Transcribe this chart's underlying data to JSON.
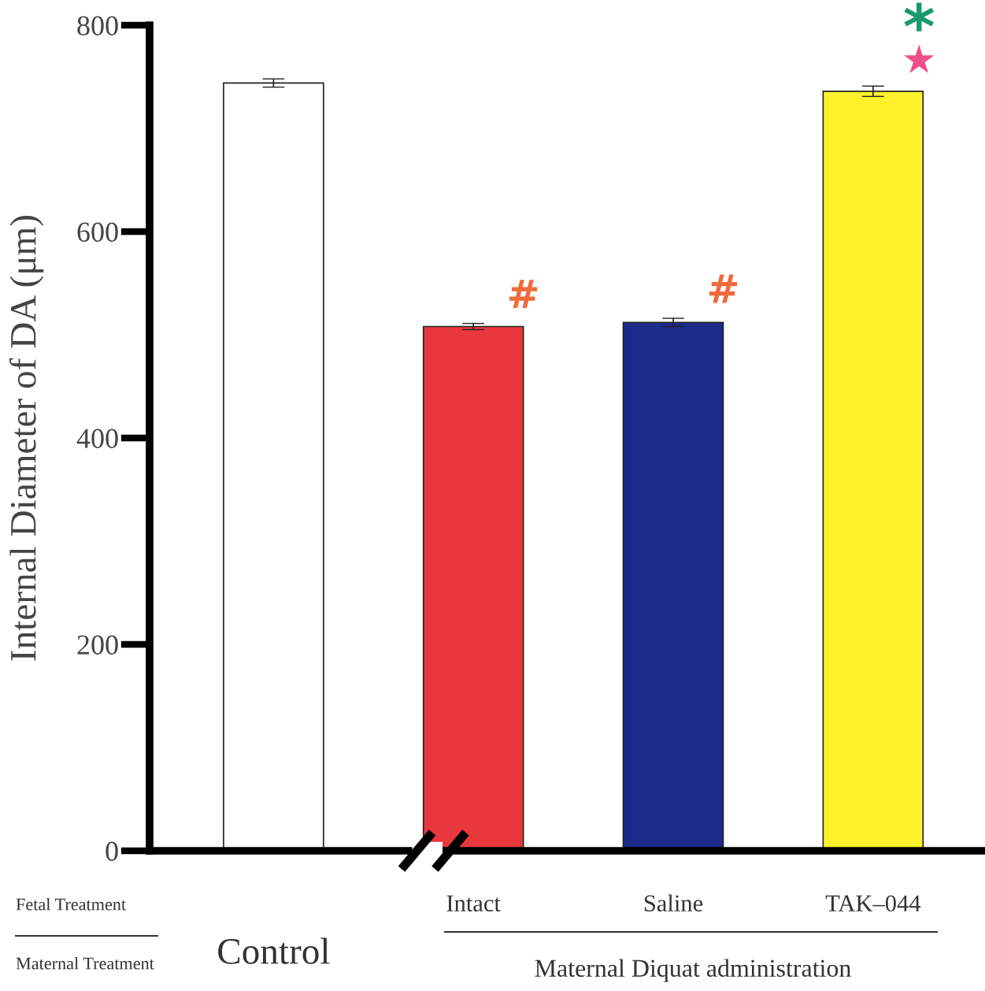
{
  "chart_data": {
    "type": "bar",
    "ylabel": "Internal Diameter of DA (μm)",
    "categories": [
      "Control",
      "Intact",
      "Saline",
      "TAK–044"
    ],
    "values": [
      744,
      508,
      512,
      736
    ],
    "errors": [
      4,
      3,
      4,
      5
    ],
    "colors": [
      "#ffffff",
      "#e8383d",
      "#1c2a8c",
      "#fff22a"
    ],
    "ylim": [
      0,
      800
    ],
    "yticks": [
      0,
      200,
      400,
      600,
      800
    ],
    "grid": false,
    "annotations": [
      "Fetal Treatment",
      "Maternal Treatment",
      "Maternal Diquat administration",
      {
        "text": "#",
        "x": "Intact",
        "y": 511
      },
      {
        "text": "#",
        "x": "Saline",
        "y": 516
      },
      {
        "text": "★",
        "x": "TAK–044",
        "y": 741
      },
      {
        "text": "*",
        "x": "TAK–044",
        "y": 741
      }
    ]
  }
}
